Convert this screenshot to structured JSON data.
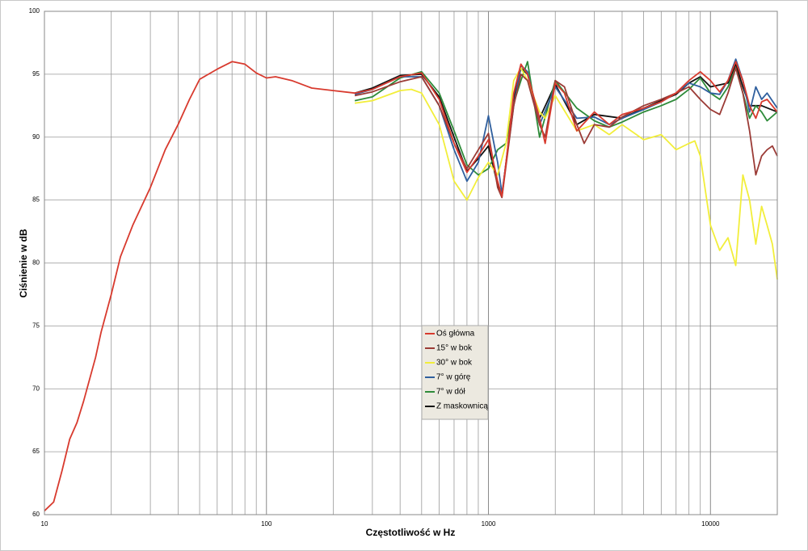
{
  "chart_data": {
    "type": "line",
    "x_label": "Częstotliwość w Hz",
    "y_label": "Ciśnienie w dB",
    "xscale": "log",
    "xlim": [
      10,
      20000
    ],
    "ylim": [
      60,
      100
    ],
    "xticks": [
      10,
      100,
      1000,
      10000
    ],
    "xgrid_minor": [
      20,
      30,
      40,
      50,
      60,
      70,
      80,
      90,
      200,
      300,
      400,
      500,
      600,
      700,
      800,
      900,
      2000,
      3000,
      4000,
      5000,
      6000,
      7000,
      8000,
      9000
    ],
    "yticks": [
      60,
      65,
      70,
      75,
      80,
      85,
      90,
      95,
      100
    ],
    "grid": true,
    "legend": "center",
    "series": [
      {
        "name": "Oś główna",
        "color": "#d83a2e",
        "x": [
          10,
          11,
          12,
          13,
          14,
          15,
          17,
          18,
          20,
          22,
          25,
          30,
          35,
          40,
          45,
          50,
          60,
          70,
          80,
          90,
          100,
          110,
          130,
          160,
          200,
          250,
          300,
          400,
          500,
          600,
          700,
          800,
          900,
          1000,
          1100,
          1150,
          1200,
          1300,
          1400,
          1500,
          1700,
          1800,
          2000,
          2200,
          2500,
          3000,
          3500,
          4000,
          5000,
          6000,
          7000,
          8000,
          9000,
          10000,
          11000,
          12000,
          13000,
          14000,
          15000,
          16000,
          17000,
          18000,
          20000
        ],
        "values": [
          60.3,
          61,
          63.5,
          66,
          67.3,
          69,
          72.5,
          74.5,
          77.5,
          80.5,
          83,
          86,
          89,
          91,
          93,
          94.6,
          95.4,
          96,
          95.8,
          95.1,
          94.7,
          94.8,
          94.5,
          93.9,
          93.7,
          93.5,
          93.8,
          94.8,
          95.1,
          93,
          89.5,
          87.2,
          88.5,
          89.8,
          86.5,
          85.3,
          88,
          93.5,
          95.8,
          95,
          91.5,
          89.5,
          94.3,
          93.5,
          90.5,
          92,
          91,
          91.8,
          92.3,
          92.8,
          93.5,
          94.5,
          95.2,
          94.5,
          93.6,
          94.5,
          96,
          94.5,
          92.5,
          91.5,
          92.8,
          93,
          92
        ]
      },
      {
        "name": "15° w bok",
        "color": "#9b3b36",
        "x": [
          250,
          300,
          400,
          500,
          600,
          700,
          800,
          900,
          1000,
          1100,
          1150,
          1300,
          1400,
          1500,
          1700,
          1800,
          2000,
          2200,
          2500,
          2700,
          3000,
          3500,
          4000,
          5000,
          6000,
          7000,
          8000,
          9000,
          10000,
          11000,
          12000,
          13000,
          14000,
          15000,
          16000,
          17000,
          18000,
          19000,
          20000
        ],
        "values": [
          93.3,
          93.6,
          94.4,
          94.8,
          92.5,
          89.5,
          87.5,
          89,
          90.3,
          86,
          85.2,
          92.5,
          95,
          94.5,
          91,
          90,
          94.5,
          94,
          91,
          89.5,
          91,
          90.8,
          91.6,
          92.5,
          93,
          93.5,
          94,
          93,
          92.2,
          91.8,
          93.5,
          95.5,
          93.5,
          90.5,
          87,
          88.5,
          89,
          89.3,
          88.5
        ]
      },
      {
        "name": "30° w bok",
        "color": "#f2ee3a",
        "x": [
          250,
          300,
          400,
          450,
          500,
          600,
          700,
          800,
          900,
          1000,
          1100,
          1200,
          1300,
          1400,
          1500,
          1700,
          1800,
          2000,
          2500,
          3000,
          3500,
          4000,
          5000,
          6000,
          7000,
          8000,
          8500,
          9000,
          10000,
          11000,
          12000,
          13000,
          14000,
          15000,
          16000,
          17000,
          18000,
          19000,
          20000
        ],
        "values": [
          92.7,
          92.9,
          93.7,
          93.8,
          93.5,
          91,
          86.5,
          85,
          86.8,
          88,
          87,
          89.5,
          94.5,
          95.5,
          94.5,
          92,
          91.5,
          93.3,
          90.5,
          91,
          90.2,
          91,
          89.8,
          90.2,
          89,
          89.5,
          89.7,
          88.5,
          83,
          81,
          82,
          79.8,
          87,
          85,
          81.5,
          84.5,
          83,
          81.5,
          78.7
        ]
      },
      {
        "name": "7° w górę",
        "color": "#2f5f9e",
        "x": [
          250,
          300,
          400,
          500,
          600,
          700,
          800,
          900,
          1000,
          1100,
          1150,
          1300,
          1400,
          1500,
          1700,
          2000,
          2500,
          3000,
          3500,
          4000,
          5000,
          6000,
          7000,
          8000,
          9000,
          10000,
          11000,
          12000,
          13000,
          14000,
          15000,
          16000,
          17000,
          18000,
          20000
        ],
        "values": [
          93.4,
          93.8,
          94.8,
          94.8,
          92.5,
          89,
          86.5,
          88,
          91.7,
          88,
          85.5,
          92.5,
          95.7,
          95.2,
          91,
          94,
          91.5,
          91.6,
          91,
          91.5,
          92.2,
          92.8,
          93.5,
          94.3,
          94,
          93.5,
          93.4,
          94.5,
          96.2,
          94.5,
          92,
          94,
          93,
          93.5,
          92.3
        ]
      },
      {
        "name": "7° w dół",
        "color": "#2e8b3a",
        "x": [
          250,
          300,
          400,
          500,
          600,
          700,
          800,
          900,
          1000,
          1100,
          1200,
          1300,
          1400,
          1500,
          1700,
          2000,
          2500,
          3000,
          3500,
          4000,
          5000,
          6000,
          7000,
          8000,
          9000,
          10000,
          11000,
          12000,
          13000,
          14000,
          15000,
          16000,
          17000,
          18000,
          20000
        ],
        "values": [
          92.9,
          93.2,
          94.7,
          95.2,
          93.5,
          90.5,
          87.8,
          87,
          87.5,
          89,
          89.5,
          92.7,
          94.5,
          96,
          90,
          94.5,
          92.3,
          91.3,
          90.8,
          91.2,
          92,
          92.5,
          93,
          93.8,
          94.7,
          93.5,
          93,
          94,
          95.5,
          93.5,
          91.5,
          92.5,
          92,
          91.3,
          92
        ]
      },
      {
        "name": "Z maskownicą",
        "color": "#111111",
        "x": [
          250,
          300,
          400,
          500,
          600,
          700,
          800,
          900,
          1000,
          1100,
          1150,
          1300,
          1400,
          1500,
          1700,
          2000,
          2500,
          3000,
          4000,
          5000,
          6000,
          7000,
          8000,
          9000,
          10000,
          12000,
          13000,
          14000,
          15000,
          17000,
          20000
        ],
        "values": [
          93.5,
          93.9,
          94.9,
          95,
          93.2,
          90,
          87.3,
          88.3,
          89.3,
          86.2,
          85.3,
          93,
          95.5,
          95,
          91.5,
          94.2,
          91,
          91.8,
          91.5,
          92.3,
          92.9,
          93.4,
          94.3,
          94.8,
          94,
          94.3,
          95.8,
          94,
          92.5,
          92.5,
          92
        ]
      }
    ]
  }
}
